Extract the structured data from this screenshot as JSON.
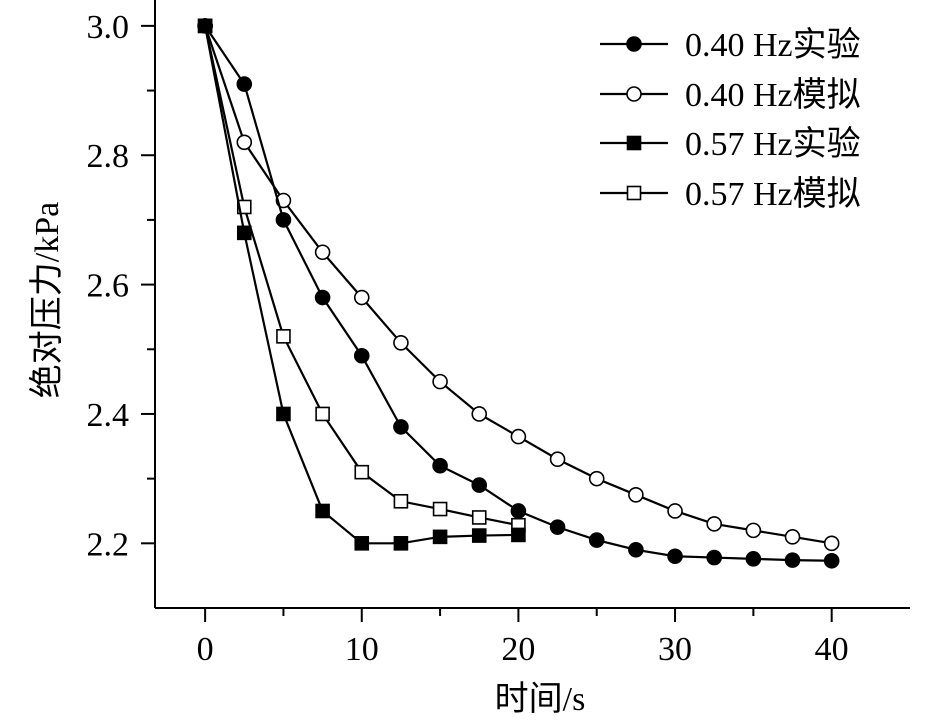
{
  "chart_data": {
    "type": "line",
    "title": "",
    "xlabel": "时间/s",
    "ylabel": "绝对压力/kPa",
    "xlim": [
      -3.2,
      45.0
    ],
    "ylim": [
      2.1,
      3.04
    ],
    "xticks": [
      0,
      10,
      20,
      30,
      40
    ],
    "yticks": [
      2.2,
      2.4,
      2.6,
      2.8,
      3.0
    ],
    "xtick_labels": [
      "0",
      "10",
      "20",
      "30",
      "40"
    ],
    "ytick_labels": [
      "2.2",
      "2.4",
      "2.6",
      "2.8",
      "3.0"
    ],
    "minor_xticks": [
      5,
      15,
      25,
      35
    ],
    "minor_yticks": [
      2.3,
      2.5,
      2.7,
      2.9
    ],
    "grid": false,
    "legend_position": "top-right",
    "series": [
      {
        "name": "0.40 Hz实验",
        "marker": "circle",
        "filled": true,
        "x": [
          0,
          2.5,
          5,
          7.5,
          10,
          12.5,
          15,
          17.5,
          20,
          22.5,
          25,
          27.5,
          30,
          32.5,
          35,
          37.5,
          40
        ],
        "values": [
          3.0,
          2.91,
          2.7,
          2.58,
          2.49,
          2.38,
          2.32,
          2.29,
          2.25,
          2.225,
          2.205,
          2.19,
          2.18,
          2.178,
          2.176,
          2.174,
          2.173
        ]
      },
      {
        "name": "0.40 Hz模拟",
        "marker": "circle",
        "filled": false,
        "x": [
          0,
          2.5,
          5,
          7.5,
          10,
          12.5,
          15,
          17.5,
          20,
          22.5,
          25,
          27.5,
          30,
          32.5,
          35,
          37.5,
          40
        ],
        "values": [
          3.0,
          2.82,
          2.73,
          2.65,
          2.58,
          2.51,
          2.45,
          2.4,
          2.365,
          2.33,
          2.3,
          2.275,
          2.25,
          2.23,
          2.22,
          2.21,
          2.2
        ]
      },
      {
        "name": "0.57 Hz实验",
        "marker": "square",
        "filled": true,
        "x": [
          0,
          2.5,
          5,
          7.5,
          10,
          12.5,
          15,
          17.5,
          20
        ],
        "values": [
          3.0,
          2.68,
          2.4,
          2.25,
          2.2,
          2.2,
          2.21,
          2.212,
          2.213
        ]
      },
      {
        "name": "0.57 Hz模拟",
        "marker": "square",
        "filled": false,
        "x": [
          0,
          2.5,
          5,
          7.5,
          10,
          12.5,
          15,
          17.5,
          20
        ],
        "values": [
          3.0,
          2.72,
          2.52,
          2.4,
          2.31,
          2.265,
          2.253,
          2.24,
          2.228
        ]
      }
    ]
  },
  "colors": {
    "stroke": "#000000",
    "fill_filled": "#000000",
    "fill_hollow": "#ffffff",
    "background": "#ffffff"
  }
}
